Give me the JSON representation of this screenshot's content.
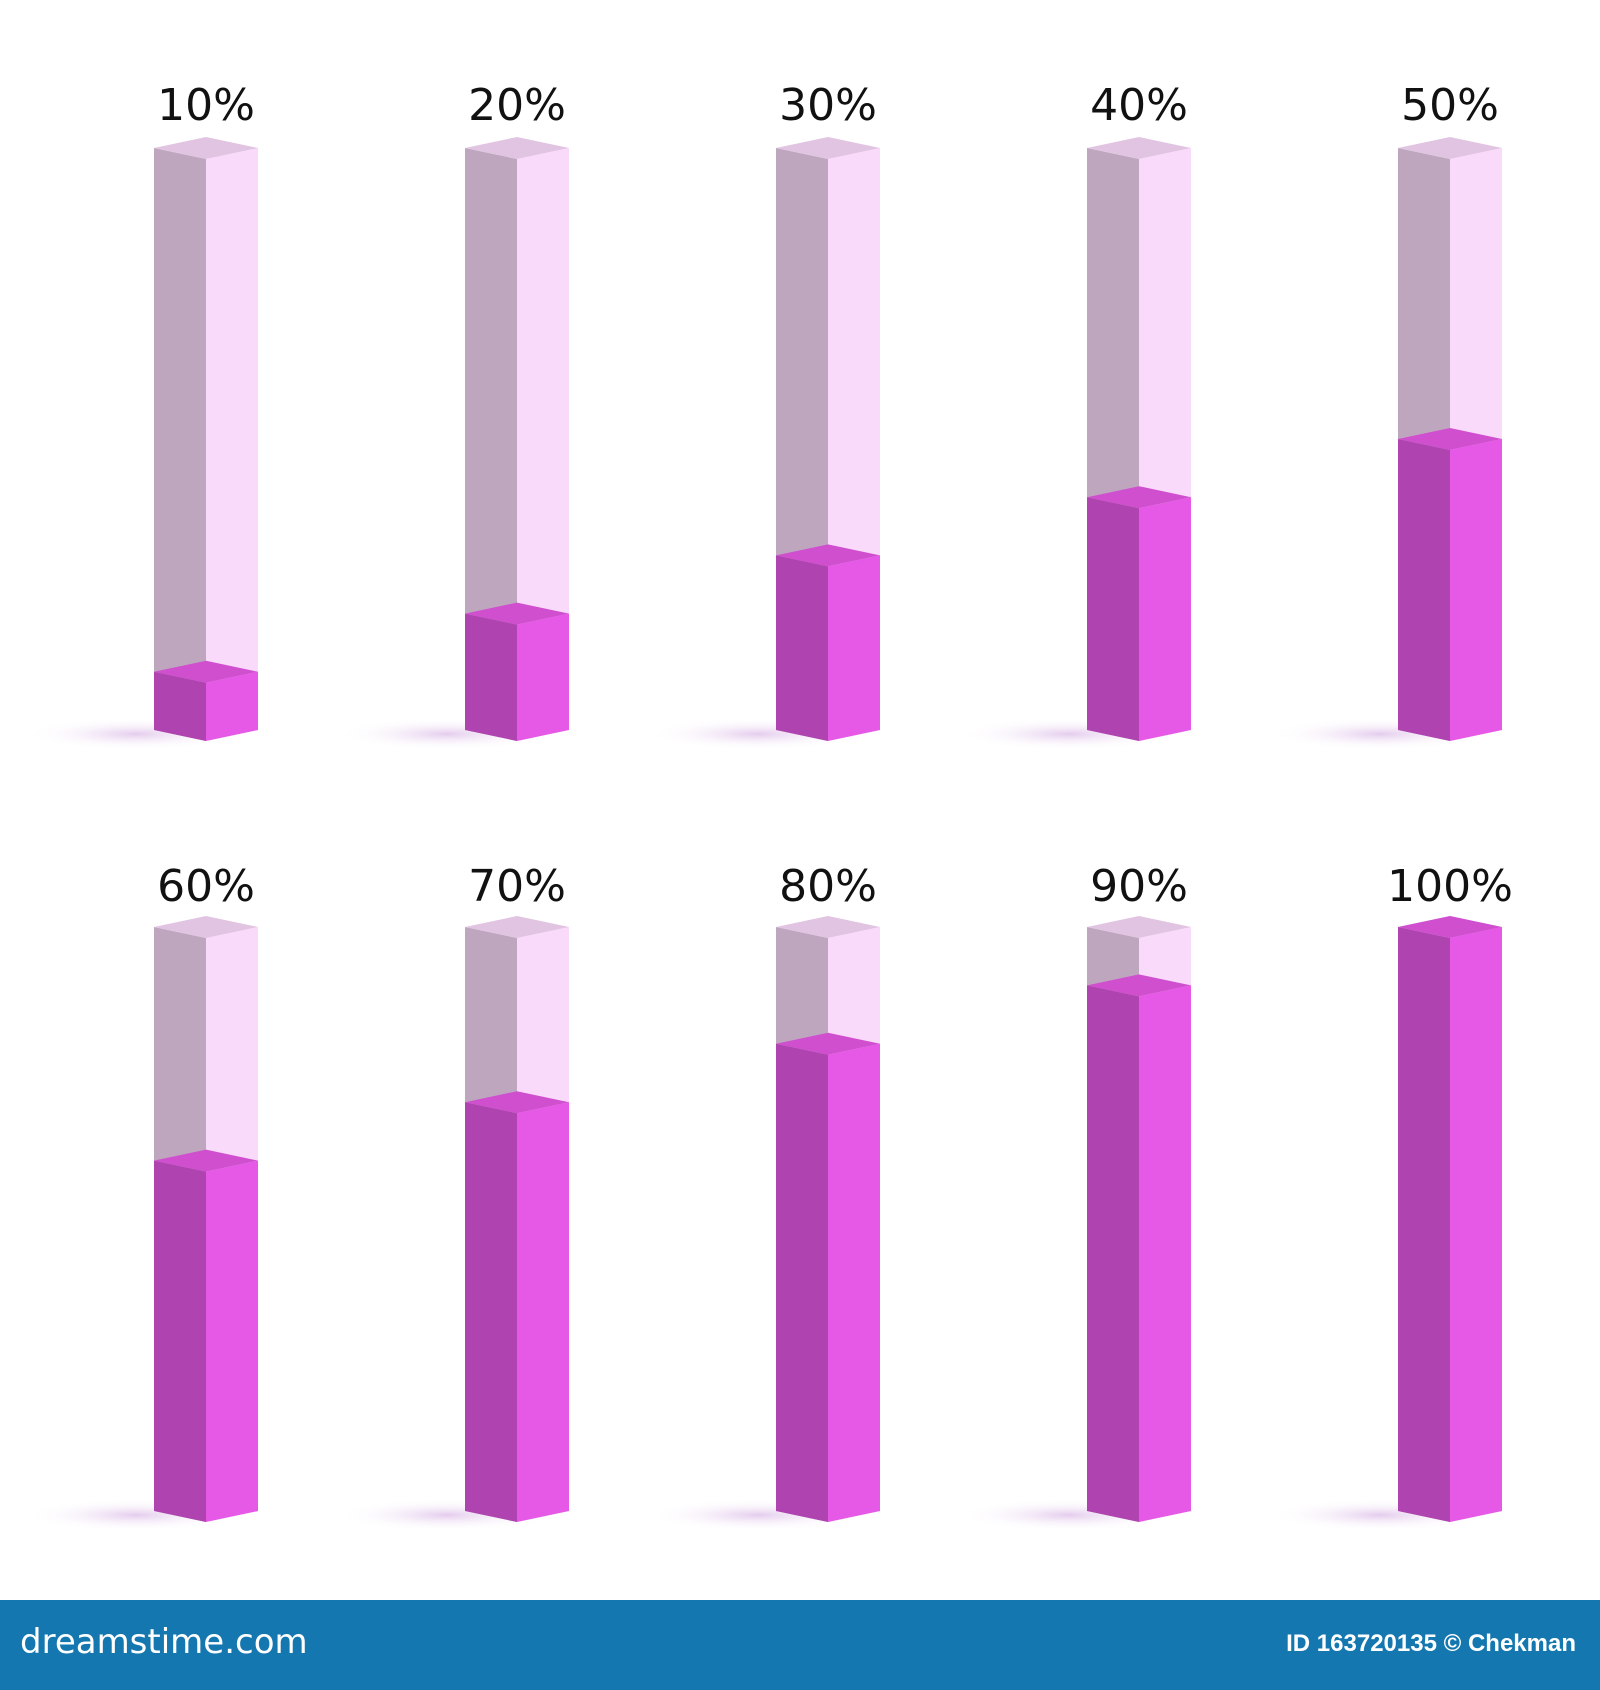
{
  "chart_data": {
    "type": "bar",
    "values": [
      10,
      20,
      30,
      40,
      50,
      60,
      70,
      80,
      90,
      100
    ],
    "value_labels": [
      "10%",
      "20%",
      "30%",
      "40%",
      "50%",
      "60%",
      "70%",
      "80%",
      "90%",
      "100%"
    ],
    "ylim": [
      0,
      100
    ],
    "color": "#e658e6",
    "track_color": "#fadafa"
  },
  "footer": {
    "brand": "dreamstime.com",
    "credit": "ID 163720135 © Chekman"
  }
}
